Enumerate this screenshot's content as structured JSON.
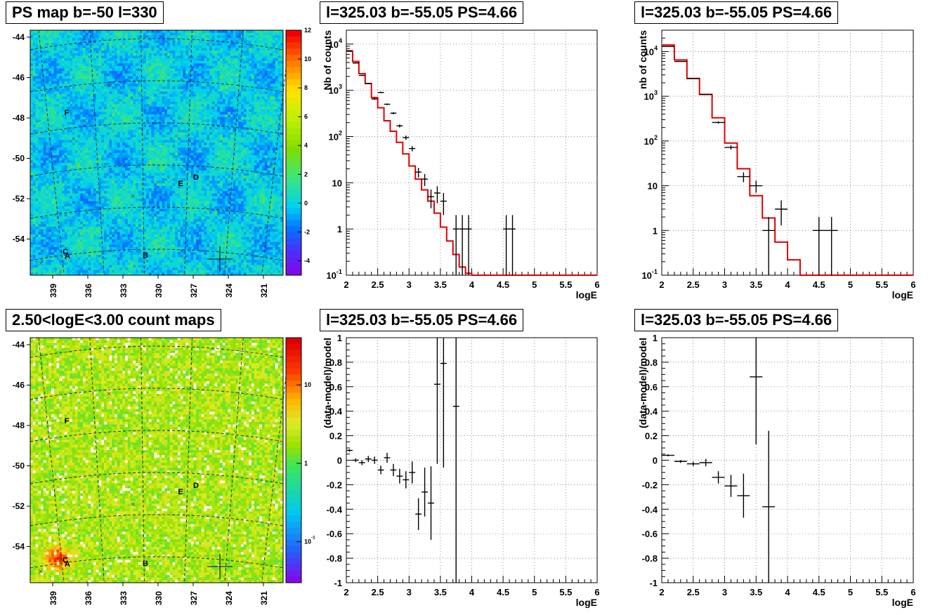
{
  "titles": {
    "map_ps": "PS map b=-50 l=330",
    "map_counts": "2.50<logE<3.00 count maps",
    "spec_fine": "l=325.03 b=-55.05 PS=4.66",
    "spec_coarse": "l=325.03 b=-55.05 PS=4.66",
    "resid_fine": "l=325.03 b=-55.05 PS=4.66",
    "resid_coarse": "l=325.03 b=-55.05 PS=4.66"
  },
  "colors": {
    "model": "#e00000",
    "data": "#000000",
    "grid": "#555555"
  },
  "chart_data": [
    {
      "id": "map_ps",
      "type": "heatmap",
      "title": "PS map b=-50 l=330",
      "x_ticks": [
        "339",
        "336",
        "333",
        "330",
        "327",
        "324",
        "321"
      ],
      "y_ticks": [
        "-44",
        "-46",
        "-48",
        "-50",
        "-52",
        "-54"
      ],
      "colorbar_ticks": [
        "12",
        "10",
        "8",
        "6",
        "4",
        "2",
        "0",
        "-2",
        "-4"
      ],
      "colorbar_range": [
        -5,
        12
      ],
      "colorbar_scale": "linear",
      "source_labels": [
        "F",
        "E",
        "D",
        "C",
        "A",
        "B"
      ]
    },
    {
      "id": "map_counts",
      "type": "heatmap",
      "title": "2.50<logE<3.00 count maps",
      "x_ticks": [
        "339",
        "336",
        "333",
        "330",
        "327",
        "324",
        "321"
      ],
      "y_ticks": [
        "-44",
        "-46",
        "-48",
        "-50",
        "-52",
        "-54"
      ],
      "colorbar_ticks": [
        "10",
        "1",
        "10-1"
      ],
      "colorbar_range": [
        0.03,
        40
      ],
      "colorbar_scale": "log",
      "source_labels": [
        "F",
        "E",
        "D",
        "C",
        "A",
        "B"
      ]
    },
    {
      "id": "spec_fine",
      "type": "line",
      "title": "l=325.03 b=-55.05 PS=4.66",
      "xlabel": "logE",
      "ylabel": "Nb of counts",
      "xlim": [
        2,
        6
      ],
      "ylim": [
        0.1,
        20000
      ],
      "yscale": "log",
      "grid": true,
      "x_ticks": [
        "2",
        "2.5",
        "3",
        "3.5",
        "4",
        "4.5",
        "5",
        "5.5",
        "6"
      ],
      "y_ticks": [
        "10-1",
        "1",
        "10",
        "102",
        "103",
        "104"
      ],
      "model_bins": [
        2.0,
        2.1,
        2.2,
        2.3,
        2.4,
        2.5,
        2.6,
        2.7,
        2.8,
        2.9,
        3.0,
        3.1,
        3.2,
        3.3,
        3.4,
        3.5,
        3.6,
        3.7,
        3.8,
        3.9,
        4.0,
        6.0
      ],
      "model_values": [
        7000,
        4200,
        2300,
        1400,
        700,
        420,
        220,
        130,
        75,
        42,
        23,
        12,
        7,
        4,
        2.2,
        1.1,
        0.55,
        0.28,
        0.15,
        0.11,
        0.1
      ],
      "points": [
        {
          "x": 2.05,
          "y": 7200,
          "lo": 7000,
          "hi": 7400
        },
        {
          "x": 2.15,
          "y": 3900,
          "lo": 3800,
          "hi": 4000
        },
        {
          "x": 2.25,
          "y": 2100,
          "lo": 2050,
          "hi": 2150
        },
        {
          "x": 2.35,
          "y": 1400,
          "lo": 1360,
          "hi": 1440
        },
        {
          "x": 2.45,
          "y": 650,
          "lo": 625,
          "hi": 675
        },
        {
          "x": 2.55,
          "y": 900,
          "lo": 870,
          "hi": 930
        },
        {
          "x": 2.65,
          "y": 500,
          "lo": 480,
          "hi": 520
        },
        {
          "x": 2.75,
          "y": 320,
          "lo": 302,
          "hi": 338
        },
        {
          "x": 2.85,
          "y": 170,
          "lo": 157,
          "hi": 183
        },
        {
          "x": 2.95,
          "y": 95,
          "lo": 85,
          "hi": 105
        },
        {
          "x": 3.05,
          "y": 55,
          "lo": 48,
          "hi": 62
        },
        {
          "x": 3.15,
          "y": 17,
          "lo": 13,
          "hi": 21
        },
        {
          "x": 3.25,
          "y": 12,
          "lo": 8.5,
          "hi": 15.5
        },
        {
          "x": 3.35,
          "y": 5,
          "lo": 2.8,
          "hi": 7.2
        },
        {
          "x": 3.45,
          "y": 6,
          "lo": 3.6,
          "hi": 8.4
        },
        {
          "x": 3.55,
          "y": 4,
          "lo": 2,
          "hi": 6
        },
        {
          "x": 3.75,
          "y": 1,
          "lo": 0.1,
          "hi": 2
        },
        {
          "x": 3.85,
          "y": 1,
          "lo": 0.1,
          "hi": 2
        },
        {
          "x": 3.95,
          "y": 1,
          "lo": 0.1,
          "hi": 2
        },
        {
          "x": 4.55,
          "y": 1,
          "lo": 0.1,
          "hi": 2
        },
        {
          "x": 4.65,
          "y": 1,
          "lo": 0.1,
          "hi": 2
        }
      ]
    },
    {
      "id": "spec_coarse",
      "type": "line",
      "title": "l=325.03 b=-55.05 PS=4.66",
      "xlabel": "logE",
      "ylabel": "nb of counts",
      "xlim": [
        2,
        6
      ],
      "ylim": [
        0.1,
        30000
      ],
      "yscale": "log",
      "grid": true,
      "x_ticks": [
        "2",
        "2.5",
        "3",
        "3.5",
        "4",
        "4.5",
        "5",
        "5.5",
        "6"
      ],
      "y_ticks": [
        "10-1",
        "1",
        "10",
        "102",
        "103",
        "104"
      ],
      "model_bins": [
        2.0,
        2.2,
        2.4,
        2.6,
        2.8,
        3.0,
        3.2,
        3.4,
        3.6,
        3.8,
        4.0,
        4.2,
        6.0
      ],
      "model_values": [
        14000,
        6500,
        2500,
        1100,
        330,
        90,
        24,
        6,
        1.9,
        0.55,
        0.22,
        0.1
      ],
      "points": [
        {
          "x": 2.1,
          "y": 13000,
          "lo": 12800,
          "hi": 13200
        },
        {
          "x": 2.3,
          "y": 6000,
          "lo": 5900,
          "hi": 6100
        },
        {
          "x": 2.5,
          "y": 2500,
          "lo": 2450,
          "hi": 2550
        },
        {
          "x": 2.7,
          "y": 1100,
          "lo": 1070,
          "hi": 1130
        },
        {
          "x": 2.9,
          "y": 260,
          "lo": 244,
          "hi": 276
        },
        {
          "x": 3.1,
          "y": 72,
          "lo": 64,
          "hi": 80
        },
        {
          "x": 3.3,
          "y": 16,
          "lo": 12,
          "hi": 20
        },
        {
          "x": 3.5,
          "y": 10,
          "lo": 7,
          "hi": 13
        },
        {
          "x": 3.7,
          "y": 1,
          "lo": 0.1,
          "hi": 2
        },
        {
          "x": 3.9,
          "y": 3,
          "lo": 1.3,
          "hi": 4.7
        },
        {
          "x": 4.5,
          "y": 1,
          "lo": 0.1,
          "hi": 2
        },
        {
          "x": 4.7,
          "y": 1,
          "lo": 0.1,
          "hi": 2
        }
      ]
    },
    {
      "id": "resid_fine",
      "type": "scatter",
      "title": "l=325.03 b=-55.05 PS=4.66",
      "xlabel": "logE",
      "ylabel": "(data-model)/model",
      "xlim": [
        2,
        6
      ],
      "ylim": [
        -1,
        1
      ],
      "grid": true,
      "x_ticks": [
        "2",
        "2.5",
        "3",
        "3.5",
        "4",
        "4.5",
        "5",
        "5.5",
        "6"
      ],
      "y_ticks": [
        "1",
        "0.8",
        "0.6",
        "0.4",
        "0.2",
        "0",
        "-0.2",
        "-0.4",
        "-0.6",
        "-0.8",
        "-1"
      ],
      "points": [
        {
          "x": 2.05,
          "y": 0.08,
          "err": 0.01
        },
        {
          "x": 2.15,
          "y": 0.0,
          "err": 0.015
        },
        {
          "x": 2.25,
          "y": -0.02,
          "err": 0.02
        },
        {
          "x": 2.35,
          "y": 0.01,
          "err": 0.025
        },
        {
          "x": 2.45,
          "y": 0.0,
          "err": 0.03
        },
        {
          "x": 2.55,
          "y": -0.08,
          "err": 0.035
        },
        {
          "x": 2.65,
          "y": 0.02,
          "err": 0.04
        },
        {
          "x": 2.75,
          "y": -0.08,
          "err": 0.05
        },
        {
          "x": 2.85,
          "y": -0.13,
          "err": 0.06
        },
        {
          "x": 2.95,
          "y": -0.16,
          "err": 0.07
        },
        {
          "x": 3.05,
          "y": -0.1,
          "err": 0.09
        },
        {
          "x": 3.15,
          "y": -0.44,
          "err": 0.13
        },
        {
          "x": 3.25,
          "y": -0.26,
          "err": 0.2
        },
        {
          "x": 3.35,
          "y": -0.35,
          "err": 0.3
        },
        {
          "x": 3.45,
          "y": 0.62,
          "err": 0.65
        },
        {
          "x": 3.55,
          "y": 0.79,
          "err": 0.85
        },
        {
          "x": 3.75,
          "y": 0.44,
          "err": 1.5
        }
      ]
    },
    {
      "id": "resid_coarse",
      "type": "scatter",
      "title": "l=325.03 b=-55.05 PS=4.66",
      "xlabel": "logE",
      "ylabel": "(data-model)/model",
      "xlim": [
        2,
        6
      ],
      "ylim": [
        -1,
        1
      ],
      "grid": true,
      "x_ticks": [
        "2",
        "2.5",
        "3",
        "3.5",
        "4",
        "4.5",
        "5",
        "5.5",
        "6"
      ],
      "y_ticks": [
        "1",
        "0.8",
        "0.6",
        "0.4",
        "0.2",
        "0",
        "-0.2",
        "-0.4",
        "-0.6",
        "-0.8",
        "-1"
      ],
      "points": [
        {
          "x": 2.1,
          "y": 0.04,
          "err": 0.008
        },
        {
          "x": 2.3,
          "y": -0.01,
          "err": 0.012
        },
        {
          "x": 2.5,
          "y": -0.03,
          "err": 0.018
        },
        {
          "x": 2.7,
          "y": -0.02,
          "err": 0.03
        },
        {
          "x": 2.9,
          "y": -0.14,
          "err": 0.05
        },
        {
          "x": 3.1,
          "y": -0.21,
          "err": 0.09
        },
        {
          "x": 3.3,
          "y": -0.29,
          "err": 0.18
        },
        {
          "x": 3.5,
          "y": 0.68,
          "err": 0.55
        },
        {
          "x": 3.7,
          "y": -0.38,
          "err": 0.62
        }
      ]
    }
  ]
}
